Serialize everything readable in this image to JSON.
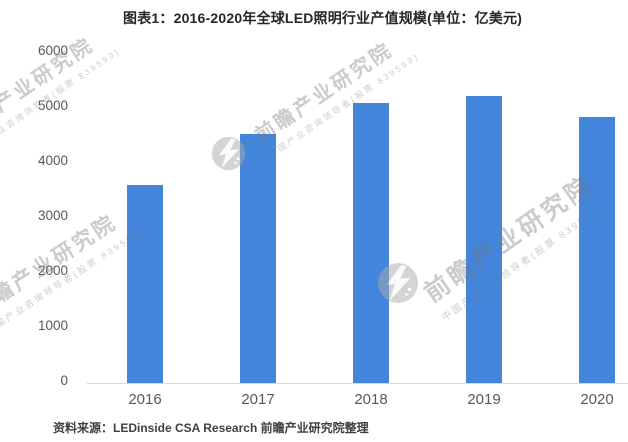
{
  "header": {
    "title": "图表1：2016-2020年全球LED照明行业产值规模(单位：亿美元)"
  },
  "footer": {
    "source": "资料来源：LEDinside CSA Research 前瞻产业研究院整理"
  },
  "watermark": {
    "brand": "前瞻产业研究院",
    "tagline": "中国产业咨询领导者(股票 839599)",
    "logo": "qianzhan-globe-logo"
  },
  "chart_data": {
    "type": "bar",
    "title": "图表1：2016-2020年全球LED照明行业产值规模(单位：亿美元)",
    "series_name": "全球LED照明行业产值规模",
    "unit": "亿美元",
    "categories": [
      "2016",
      "2017",
      "2018",
      "2019",
      "2020"
    ],
    "values": [
      3550,
      4480,
      5050,
      5176,
      4800
    ],
    "ylim": [
      0,
      6000
    ],
    "yticks": [
      0,
      1000,
      2000,
      3000,
      4000,
      5000,
      6000
    ],
    "xlabel": "",
    "ylabel": "",
    "grid": false,
    "legend": false
  },
  "colors": {
    "bar": "#4285DB",
    "axis_line": "#D9D9D9",
    "tick_label": "#595959",
    "title_text": "#262626",
    "source_text": "#404040",
    "watermark": "#8C8C8C",
    "background": "#FFFFFF"
  }
}
